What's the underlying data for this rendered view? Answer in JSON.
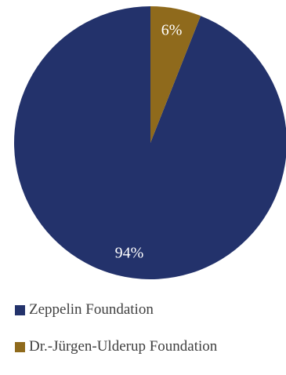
{
  "chart_data": {
    "type": "pie",
    "categories": [
      "Zeppelin Foundation",
      "Dr.-Jürgen-Ulderup Foundation"
    ],
    "values": [
      94,
      6
    ],
    "data_labels": [
      "94%",
      "6%"
    ],
    "colors": [
      "#23326b",
      "#8f6a1c"
    ],
    "legend_position": "bottom-left"
  }
}
